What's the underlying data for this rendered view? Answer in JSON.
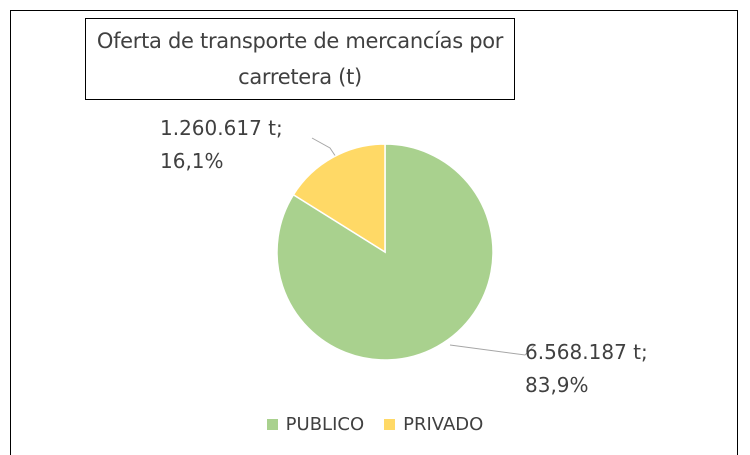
{
  "chart_data": {
    "type": "pie",
    "title": "Oferta de transporte de mercancías por carretera (t)",
    "categories": [
      "PUBLICO",
      "PRIVADO"
    ],
    "values": [
      6568187,
      1260617
    ],
    "value_labels": [
      "6.568.187 t; 83,9%",
      "1.260.617 t; 16,1%"
    ],
    "colors": [
      "#a9d18e",
      "#ffd966"
    ],
    "legend": "bottom"
  }
}
